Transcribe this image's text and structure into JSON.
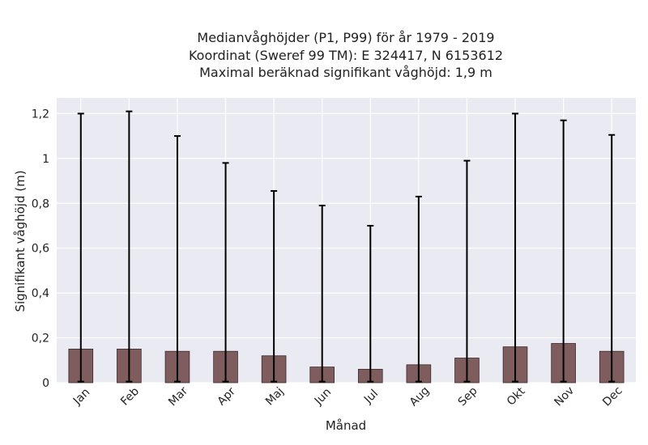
{
  "chart_data": {
    "type": "bar",
    "title_lines": [
      "Medianvåghöjder (P1, P99) för år 1979 - 2019",
      "Koordinat (Sweref 99 TM): E 324417, N 6153612",
      "Maximal beräknad signifikant våghöjd: 1,9 m"
    ],
    "xlabel": "Månad",
    "ylabel": "Signifikant våghöjd (m)",
    "categories": [
      "Jan",
      "Feb",
      "Mar",
      "Apr",
      "Maj",
      "Jun",
      "Jul",
      "Aug",
      "Sep",
      "Okt",
      "Nov",
      "Dec"
    ],
    "values": [
      0.15,
      0.15,
      0.14,
      0.14,
      0.12,
      0.07,
      0.06,
      0.08,
      0.11,
      0.16,
      0.175,
      0.14
    ],
    "p1": [
      0.005,
      0.005,
      0.005,
      0.005,
      0.005,
      0.005,
      0.005,
      0.005,
      0.005,
      0.005,
      0.005,
      0.005
    ],
    "p99": [
      1.2,
      1.21,
      1.1,
      0.98,
      0.855,
      0.79,
      0.7,
      0.83,
      0.99,
      1.2,
      1.17,
      1.105
    ],
    "ylim": [
      0,
      1.27
    ],
    "yticks": [
      0,
      0.2,
      0.4,
      0.6,
      0.8,
      1,
      1.2
    ],
    "ytick_labels": [
      "0",
      "0,2",
      "0,4",
      "0,6",
      "0,8",
      "1",
      "1,2"
    ],
    "grid": true,
    "colors": {
      "bar": "#7f5c5e",
      "bar_edge": "#3a2a2b",
      "errorbar": "#000000",
      "plot_background": "#eaeaf2",
      "grid": "#ffffff"
    }
  }
}
